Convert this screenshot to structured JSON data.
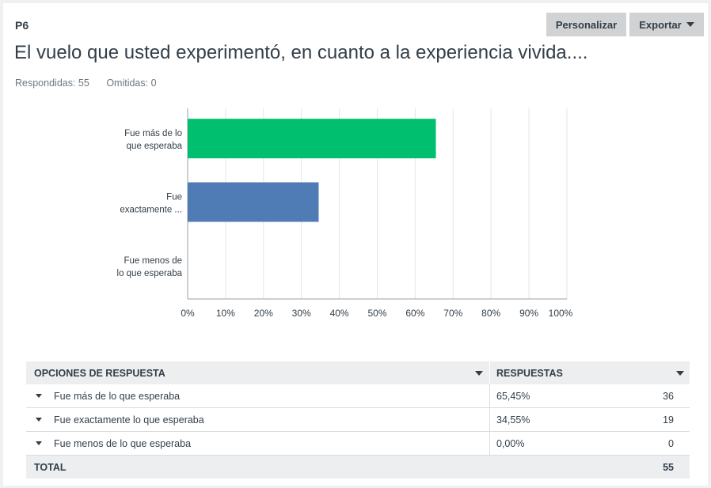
{
  "header": {
    "question_number": "P6",
    "customize_label": "Personalizar",
    "export_label": "Exportar",
    "title": "El vuelo que usted experimentó, en cuanto a la experiencia vivida....",
    "answered": "Respondidas: 55",
    "skipped": "Omitidas: 0"
  },
  "colors": {
    "accent_green": "#00bf6f",
    "accent_blue": "#507cb6"
  },
  "chart_data": {
    "type": "bar",
    "orientation": "horizontal",
    "categories": [
      [
        "Fue más de lo",
        "que esperaba"
      ],
      [
        "Fue",
        "exactamente ..."
      ],
      [
        "Fue menos de",
        "lo que esperaba"
      ]
    ],
    "values": [
      65.45,
      34.55,
      0.0
    ],
    "bar_colors": [
      "#00bf6f",
      "#507cb6",
      "#f05b24"
    ],
    "xlim": [
      0,
      100
    ],
    "x_ticks": [
      "0%",
      "10%",
      "20%",
      "30%",
      "40%",
      "50%",
      "60%",
      "70%",
      "80%",
      "90%",
      "100%"
    ],
    "grid": true
  },
  "table": {
    "headers": {
      "options": "OPCIONES DE RESPUESTA",
      "responses": "RESPUESTAS"
    },
    "rows": [
      {
        "label": "Fue más de lo que esperaba",
        "pct": "65,45%",
        "count": "36"
      },
      {
        "label": "Fue exactamente lo que esperaba",
        "pct": "34,55%",
        "count": "19"
      },
      {
        "label": "Fue menos de lo que esperaba",
        "pct": "0,00%",
        "count": "0"
      }
    ],
    "total_label": "TOTAL",
    "total_count": "55"
  }
}
